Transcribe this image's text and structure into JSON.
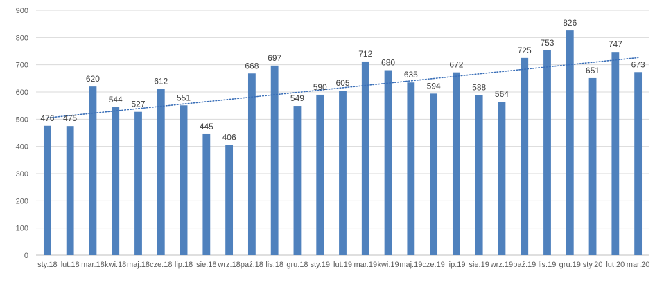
{
  "chart_data": {
    "type": "bar",
    "title": "",
    "xlabel": "",
    "ylabel": "",
    "ylim": [
      0,
      900
    ],
    "yticks": [
      0,
      100,
      200,
      300,
      400,
      500,
      600,
      700,
      800,
      900
    ],
    "grid": true,
    "legend": "none",
    "categories": [
      "sty.18",
      "lut.18",
      "mar.18",
      "kwi.18",
      "maj.18",
      "cze.18",
      "lip.18",
      "sie.18",
      "wrz.18",
      "paź.18",
      "lis.18",
      "gru.18",
      "sty.19",
      "lut.19",
      "mar.19",
      "kwi.19",
      "maj.19",
      "cze.19",
      "lip.19",
      "sie.19",
      "wrz.19",
      "paź.19",
      "lis.19",
      "gru.19",
      "sty.20",
      "lut.20",
      "mar.20"
    ],
    "values": [
      476,
      475,
      620,
      544,
      527,
      612,
      551,
      445,
      406,
      668,
      697,
      549,
      590,
      605,
      712,
      680,
      635,
      594,
      672,
      588,
      564,
      725,
      753,
      826,
      651,
      747,
      673
    ],
    "data_labels": [
      "476",
      "475",
      "620",
      "544",
      "527",
      "612",
      "551",
      "445",
      "406",
      "668",
      "697",
      "549",
      "590",
      "605",
      "712",
      "680",
      "635",
      "594",
      "672",
      "588",
      "564",
      "725",
      "753",
      "826",
      "651",
      "747",
      "673"
    ],
    "trendline": {
      "type": "linear",
      "style": "dotted",
      "start": 505,
      "end": 726
    },
    "colors": {
      "bar": "#4f81bd",
      "trend": "#3a6fb8",
      "grid": "#d9d9d9",
      "axis": "#bfbfbf"
    }
  }
}
